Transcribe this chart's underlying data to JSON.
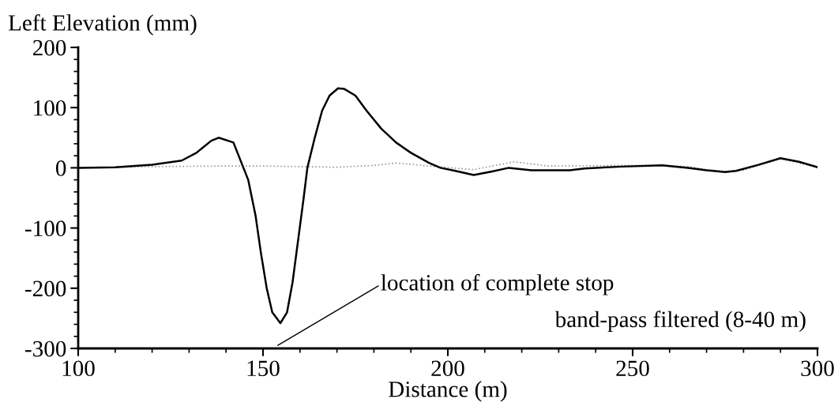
{
  "chart_data": {
    "type": "line",
    "xlabel": "Distance (m)",
    "ylabel": "Left Elevation (mm)",
    "xlim": [
      100,
      300
    ],
    "ylim": [
      -300,
      200
    ],
    "xticks": [
      100,
      {
        "value": 110,
        "label": null
      },
      {
        "value": 120,
        "label": null
      },
      {
        "value": 130,
        "label": null
      },
      {
        "value": 140,
        "label": null
      },
      150,
      {
        "value": 160,
        "label": null
      },
      {
        "value": 170,
        "label": null
      },
      {
        "value": 180,
        "label": null
      },
      {
        "value": 190,
        "label": null
      },
      200,
      {
        "value": 210,
        "label": null
      },
      {
        "value": 220,
        "label": null
      },
      {
        "value": 230,
        "label": null
      },
      {
        "value": 240,
        "label": null
      },
      250,
      {
        "value": 260,
        "label": null
      },
      {
        "value": 270,
        "label": null
      },
      {
        "value": 280,
        "label": null
      },
      {
        "value": 290,
        "label": null
      },
      300
    ],
    "yticks": [
      -300,
      {
        "value": -280,
        "label": null
      },
      {
        "value": -260,
        "label": null
      },
      {
        "value": -240,
        "label": null
      },
      {
        "value": -220,
        "label": null
      },
      -200,
      {
        "value": -180,
        "label": null
      },
      {
        "value": -160,
        "label": null
      },
      {
        "value": -140,
        "label": null
      },
      {
        "value": -120,
        "label": null
      },
      -100,
      {
        "value": -80,
        "label": null
      },
      {
        "value": -60,
        "label": null
      },
      {
        "value": -40,
        "label": null
      },
      {
        "value": -20,
        "label": null
      },
      0,
      {
        "value": 20,
        "label": null
      },
      {
        "value": 40,
        "label": null
      },
      {
        "value": 60,
        "label": null
      },
      {
        "value": 80,
        "label": null
      },
      100,
      {
        "value": 120,
        "label": null
      },
      {
        "value": 140,
        "label": null
      },
      {
        "value": 160,
        "label": null
      },
      {
        "value": 180,
        "label": null
      },
      200
    ],
    "grid": false,
    "legend": false,
    "marker": "none",
    "series": [
      {
        "color": "#999999",
        "line_style": "dotted",
        "x": [
          100,
          120,
          140,
          150,
          160,
          170,
          180,
          186,
          195,
          207,
          218,
          227,
          247,
          258,
          265,
          270,
          275,
          280,
          290,
          300
        ],
        "values": [
          0,
          2,
          3,
          3,
          2,
          1,
          4,
          8,
          3,
          -3,
          10,
          3,
          4,
          4,
          2,
          -3,
          -6,
          -4,
          15,
          1
        ]
      },
      {
        "color": "#000000",
        "line_style": "solid",
        "x": [
          100,
          110,
          120,
          128,
          132,
          136,
          138,
          142,
          144.7,
          146,
          148,
          149.4,
          151,
          152.5,
          154.7,
          156.5,
          158,
          159.5,
          161,
          162,
          164,
          166,
          168,
          170.3,
          172,
          175,
          178,
          182,
          186,
          190,
          195,
          198,
          202,
          207,
          212,
          216.5,
          222.6,
          233,
          237,
          247,
          258,
          265,
          270,
          275,
          278,
          284,
          290,
          295,
          300
        ],
        "values": [
          0,
          1,
          5,
          12,
          25,
          45,
          50,
          42,
          0,
          -20,
          -80,
          -140,
          -200,
          -240,
          -258,
          -240,
          -190,
          -120,
          -50,
          0,
          50,
          95,
          120,
          132,
          131,
          120,
          95,
          65,
          42,
          25,
          8,
          0,
          -5,
          -12,
          -6,
          0,
          -4,
          -4,
          -1,
          2,
          4,
          0,
          -4,
          -7,
          -5,
          5,
          16,
          10,
          1
        ]
      }
    ],
    "annotations": [
      "location of complete stop",
      "band-pass filtered (8-40 m)"
    ]
  }
}
